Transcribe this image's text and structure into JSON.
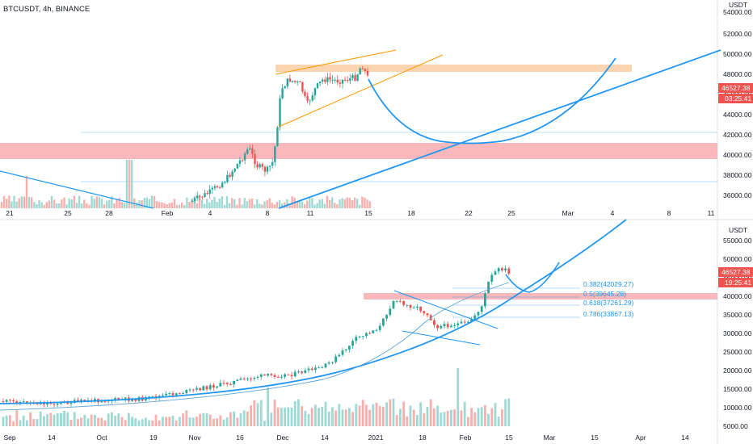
{
  "header": {
    "title": "BTCUSDT, 4h, BINANCE"
  },
  "colors": {
    "up": "#26a69a",
    "down": "#ef5350",
    "trend": "#2196f3",
    "zone_red": "#f7a1a6",
    "zone_orange": "#f9cb9c",
    "channel": "#ff9800",
    "ma": "#5ba3d9"
  },
  "top_panel": {
    "unit": "USDT",
    "y_ticks": [
      "54000.00",
      "52000.00",
      "50000.00",
      "48000.00",
      "46000.00",
      "44000.00",
      "42000.00",
      "40000.00",
      "38000.00",
      "36000.00"
    ],
    "x_ticks": [
      "21",
      "25",
      "28",
      "Feb",
      "4",
      "8",
      "11",
      "15",
      "18",
      "22",
      "25",
      "Mar",
      "4",
      "8",
      "11"
    ],
    "price_tag": "46527.38",
    "time_tag": "03:25:41"
  },
  "bottom_panel": {
    "unit": "USDT",
    "y_ticks": [
      "55000.00",
      "50000.00",
      "45000.00",
      "40000.00",
      "35000.00",
      "30000.00",
      "25000.00",
      "20000.00",
      "15000.00",
      "10000.00",
      "5000.00"
    ],
    "x_ticks": [
      "Sep",
      "14",
      "Oct",
      "19",
      "Nov",
      "16",
      "Dec",
      "14",
      "2021",
      "18",
      "Feb",
      "15",
      "Mar",
      "15",
      "Apr",
      "14"
    ],
    "price_tag": "46527.38",
    "time_tag": "19:25:41",
    "fib_levels": [
      "0.382(42029.27)",
      "0.5(39645.28)",
      "0.618(37261.29)",
      "0.786(33867.13)"
    ]
  }
}
